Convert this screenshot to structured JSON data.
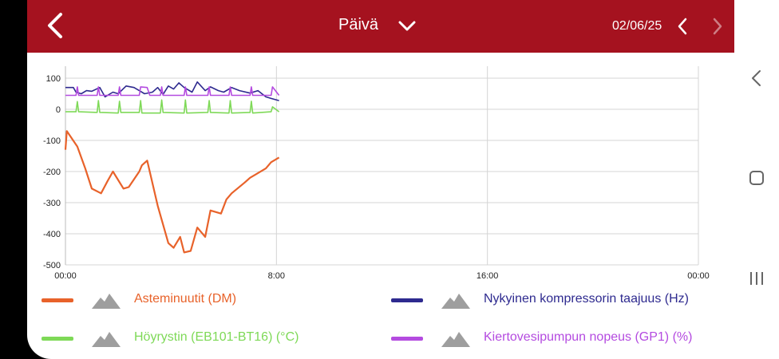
{
  "header": {
    "period": "Päivä",
    "date": "02/06/25",
    "back_icon": "chevron-left-icon",
    "dropdown_icon": "chevron-down-icon",
    "prev_icon": "chevron-left-icon",
    "next_icon": "chevron-right-icon"
  },
  "colors": {
    "header_bg": "#a5121f",
    "orange": "#e8622a",
    "green": "#7ed957",
    "navy": "#2e2a8f",
    "purple": "#b44be0",
    "grid": "#d4d4d4"
  },
  "chart_data": {
    "type": "line",
    "x_ticks": [
      "00:00",
      "8:00",
      "16:00",
      "00:00"
    ],
    "y_ticks": [
      "100",
      "0",
      "-100",
      "-200",
      "-300",
      "-400",
      "-500"
    ],
    "ylim": [
      -500,
      100
    ],
    "xlim_hours": [
      0,
      24
    ],
    "grid": true,
    "legend": "bottom",
    "series": [
      {
        "name": "Asteminuutit (DM)",
        "color": "#e8622a",
        "x": [
          0,
          0.05,
          0.45,
          0.75,
          1,
          1.35,
          1.6,
          1.8,
          2.2,
          2.4,
          2.8,
          2.9,
          3.1,
          3.5,
          3.9,
          4.1,
          4.35,
          4.5,
          4.75,
          5.0,
          5.3,
          5.5,
          5.9,
          6.1,
          6.3,
          6.8,
          7.0,
          7.2,
          7.6,
          7.8,
          8.1
        ],
        "y": [
          -130,
          -70,
          -120,
          -190,
          -255,
          -270,
          -230,
          -200,
          -255,
          -250,
          -200,
          -180,
          -165,
          -310,
          -430,
          -445,
          -410,
          -460,
          -455,
          -380,
          -410,
          -325,
          -335,
          -290,
          -270,
          -235,
          -220,
          -210,
          -190,
          -170,
          -155
        ]
      },
      {
        "name": "Nykyinen kompressorin taajuus (Hz)",
        "color": "#2e2a8f",
        "x": [
          0,
          0.3,
          0.4,
          0.6,
          0.8,
          1.0,
          1.3,
          1.5,
          1.8,
          2.0,
          2.3,
          2.6,
          2.8,
          3.0,
          3.3,
          3.5,
          3.7,
          3.9,
          4.1,
          4.3,
          4.5,
          4.8,
          5.0,
          5.3,
          5.5,
          5.8,
          6.0,
          6.3,
          6.6,
          7.0,
          7.3,
          7.6,
          7.8,
          8.1
        ],
        "y": [
          70,
          70,
          55,
          50,
          60,
          58,
          70,
          40,
          55,
          50,
          75,
          70,
          60,
          50,
          55,
          70,
          48,
          75,
          65,
          85,
          70,
          55,
          88,
          60,
          72,
          60,
          55,
          70,
          60,
          52,
          60,
          40,
          35,
          28
        ]
      },
      {
        "name": "Höyrystin (EB101-BT16) (°C)",
        "color": "#7ed957",
        "x": [
          0,
          0.4,
          0.45,
          0.5,
          1.2,
          1.25,
          1.3,
          2.0,
          2.05,
          2.1,
          2.8,
          2.85,
          2.9,
          3.6,
          3.65,
          3.7,
          4.5,
          4.55,
          4.6,
          5.4,
          5.45,
          5.5,
          6.2,
          6.25,
          6.3,
          7.0,
          7.05,
          7.1,
          7.8,
          7.85,
          8.1
        ],
        "y": [
          -8,
          -8,
          25,
          -8,
          -10,
          28,
          -10,
          -12,
          26,
          -10,
          -10,
          28,
          -12,
          -12,
          30,
          -10,
          -12,
          30,
          -12,
          -10,
          28,
          -10,
          -12,
          28,
          -12,
          -10,
          26,
          -12,
          -8,
          8,
          -8
        ]
      },
      {
        "name": "Kiertovesipumpun nopeus (GP1) (%)",
        "color": "#b44be0",
        "x": [
          0,
          0.4,
          0.45,
          0.5,
          1.2,
          1.25,
          1.3,
          2.0,
          2.05,
          2.1,
          2.8,
          2.85,
          3.1,
          3.2,
          3.6,
          3.65,
          3.7,
          4.5,
          4.55,
          4.6,
          5.4,
          5.45,
          5.5,
          6.2,
          6.25,
          6.3,
          7.0,
          7.05,
          7.1,
          7.8,
          7.85,
          8.1
        ],
        "y": [
          45,
          45,
          72,
          45,
          45,
          72,
          45,
          45,
          72,
          45,
          45,
          72,
          70,
          45,
          45,
          72,
          45,
          45,
          72,
          45,
          45,
          72,
          45,
          45,
          72,
          45,
          45,
          72,
          45,
          45,
          72,
          45
        ]
      }
    ]
  },
  "legend": [
    {
      "label": "Asteminuutit (DM)",
      "color": "#e8622a",
      "icon": "mountain-icon"
    },
    {
      "label": "Nykyinen kompressorin taajuus (Hz)",
      "color": "#2e2a8f",
      "icon": "mountain-icon"
    },
    {
      "label": "Höyrystin (EB101-BT16) (°C)",
      "color": "#7ed957",
      "icon": "mountain-icon"
    },
    {
      "label": "Kiertovesipumpun nopeus (GP1) (%)",
      "color": "#b44be0",
      "icon": "mountain-icon"
    }
  ],
  "navbar": {
    "back": "nav-back-icon",
    "home": "nav-home-icon",
    "recents": "nav-recents-icon"
  }
}
